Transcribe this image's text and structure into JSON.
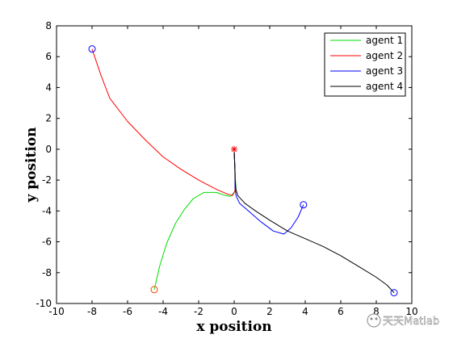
{
  "watermark": "天天Matlab",
  "chart_data": {
    "type": "line",
    "title": "",
    "xlabel": "x position",
    "ylabel": "y position",
    "xlim": [
      -10,
      10
    ],
    "ylim": [
      -10,
      8
    ],
    "xticks": [
      -10,
      -8,
      -6,
      -4,
      -2,
      0,
      2,
      4,
      6,
      8,
      10
    ],
    "yticks": [
      -10,
      -8,
      -6,
      -4,
      -2,
      0,
      2,
      4,
      6,
      8
    ],
    "grid": false,
    "legend_position": "top-right",
    "target": {
      "x": 0,
      "y": 0,
      "marker": "star",
      "color": "#ff0000"
    },
    "series": [
      {
        "name": "agent 1",
        "color": "#00dd00",
        "start_marker": {
          "x": -4.5,
          "y": -9.1,
          "color": "#ff4400"
        },
        "points": [
          [
            -4.5,
            -9.1
          ],
          [
            -4.2,
            -7.6
          ],
          [
            -3.8,
            -6.1
          ],
          [
            -3.3,
            -4.8
          ],
          [
            -2.8,
            -3.9
          ],
          [
            -2.3,
            -3.2
          ],
          [
            -1.7,
            -2.8
          ],
          [
            -1.0,
            -2.8
          ],
          [
            -0.5,
            -3.0
          ],
          [
            -0.2,
            -3.05
          ],
          [
            0,
            -2.8
          ],
          [
            0.1,
            -2.5
          ],
          [
            0.05,
            -1.5
          ],
          [
            0,
            -0.1
          ]
        ]
      },
      {
        "name": "agent 2",
        "color": "#ff0000",
        "start_marker": {
          "x": -8.0,
          "y": 6.5,
          "color": "#0000ff"
        },
        "points": [
          [
            -8.0,
            6.5
          ],
          [
            -7.5,
            4.8
          ],
          [
            -7.0,
            3.3
          ],
          [
            -6.0,
            1.8
          ],
          [
            -5.0,
            0.6
          ],
          [
            -4.0,
            -0.5
          ],
          [
            -3.0,
            -1.3
          ],
          [
            -2.0,
            -2.0
          ],
          [
            -1.0,
            -2.6
          ],
          [
            -0.4,
            -2.9
          ],
          [
            -0.1,
            -3.0
          ],
          [
            0.05,
            -2.7
          ],
          [
            0.05,
            -1.5
          ],
          [
            0,
            -0.1
          ]
        ]
      },
      {
        "name": "agent 3",
        "color": "#0000ff",
        "start_marker": {
          "x": 3.9,
          "y": -3.6,
          "color": "#0000ff"
        },
        "points": [
          [
            3.9,
            -3.6
          ],
          [
            3.6,
            -4.4
          ],
          [
            3.2,
            -5.1
          ],
          [
            2.8,
            -5.5
          ],
          [
            2.2,
            -5.3
          ],
          [
            1.5,
            -4.7
          ],
          [
            0.8,
            -4.0
          ],
          [
            0.3,
            -3.5
          ],
          [
            0.1,
            -3.0
          ],
          [
            0.05,
            -2.5
          ],
          [
            0.05,
            -1.5
          ],
          [
            0,
            -0.1
          ]
        ]
      },
      {
        "name": "agent 4",
        "color": "#000000",
        "start_marker": {
          "x": 9.0,
          "y": -9.3,
          "color": "#0000ff"
        },
        "points": [
          [
            9.0,
            -9.3
          ],
          [
            8.6,
            -8.8
          ],
          [
            8.0,
            -8.3
          ],
          [
            7.0,
            -7.6
          ],
          [
            6.0,
            -6.9
          ],
          [
            5.0,
            -6.3
          ],
          [
            4.0,
            -5.8
          ],
          [
            3.0,
            -5.3
          ],
          [
            2.0,
            -4.6
          ],
          [
            1.2,
            -4.0
          ],
          [
            0.6,
            -3.5
          ],
          [
            0.2,
            -3.0
          ],
          [
            0.1,
            -2.6
          ],
          [
            0.05,
            -2.0
          ],
          [
            0.03,
            -1.0
          ],
          [
            0,
            -0.1
          ]
        ]
      }
    ]
  }
}
